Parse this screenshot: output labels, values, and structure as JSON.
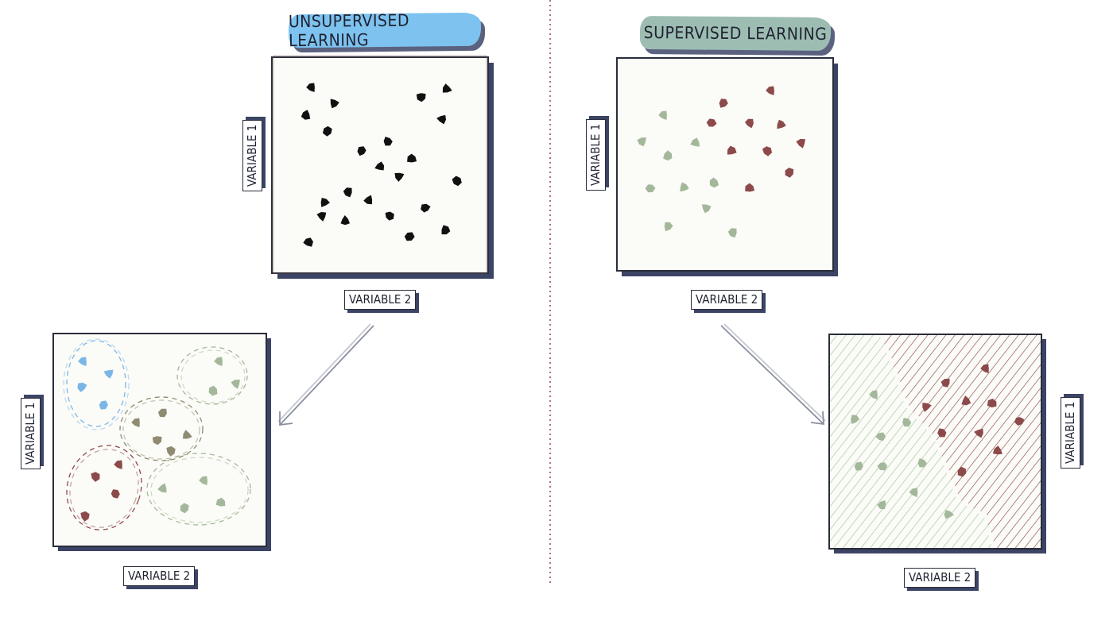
{
  "titles": {
    "unsupervised": "UNSUPERVISED LEARNING",
    "supervised": "SUPERVISED LEARNING"
  },
  "axes": {
    "y": "VARIABLE 1",
    "x": "VARIABLE 2"
  },
  "colors": {
    "unsupervised_banner": "#7ec3f0",
    "supervised_banner": "#9dbdb3",
    "panel_bg": "#fbfbf7",
    "panel_border": "#2a2d3a",
    "panel_shadow": "#3c4466",
    "point_black": "#111111",
    "point_blue": "#7ab6e8",
    "point_brown": "#8c4a4a",
    "point_green": "#a3b89a",
    "hatch_green": "#a3c39a",
    "hatch_brown": "#8c4a4a",
    "divider": "#b07080"
  }
}
